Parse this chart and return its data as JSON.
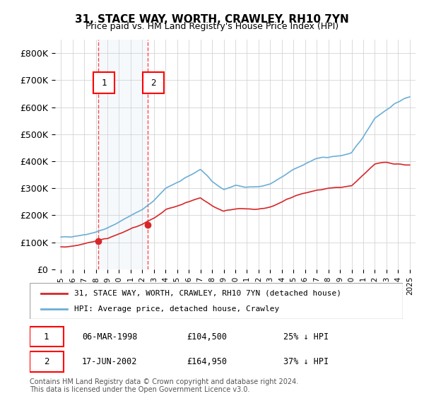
{
  "title": "31, STACE WAY, WORTH, CRAWLEY, RH10 7YN",
  "subtitle": "Price paid vs. HM Land Registry's House Price Index (HPI)",
  "sale1_date": 1998.18,
  "sale1_price": 104500,
  "sale1_label": "06-MAR-1998",
  "sale1_pct": "25% ↓ HPI",
  "sale2_date": 2002.46,
  "sale2_price": 164950,
  "sale2_label": "17-JUN-2002",
  "sale2_pct": "37% ↓ HPI",
  "legend_line1": "31, STACE WAY, WORTH, CRAWLEY, RH10 7YN (detached house)",
  "legend_line2": "HPI: Average price, detached house, Crawley",
  "footer": "Contains HM Land Registry data © Crown copyright and database right 2024.\nThis data is licensed under the Open Government Licence v3.0.",
  "hpi_color": "#6baed6",
  "price_color": "#d62728",
  "sale_marker_color": "#d62728",
  "background_color": "#ffffff",
  "grid_color": "#cccccc",
  "shade_color": "#dce9f5",
  "ylim": [
    0,
    850000
  ],
  "yticks": [
    0,
    100000,
    200000,
    300000,
    400000,
    500000,
    600000,
    700000,
    800000
  ],
  "ytick_labels": [
    "£0",
    "£100K",
    "£200K",
    "£300K",
    "£400K",
    "£500K",
    "£600K",
    "£700K",
    "£800K"
  ],
  "xlim_start": 1994.5,
  "xlim_end": 2025.5
}
